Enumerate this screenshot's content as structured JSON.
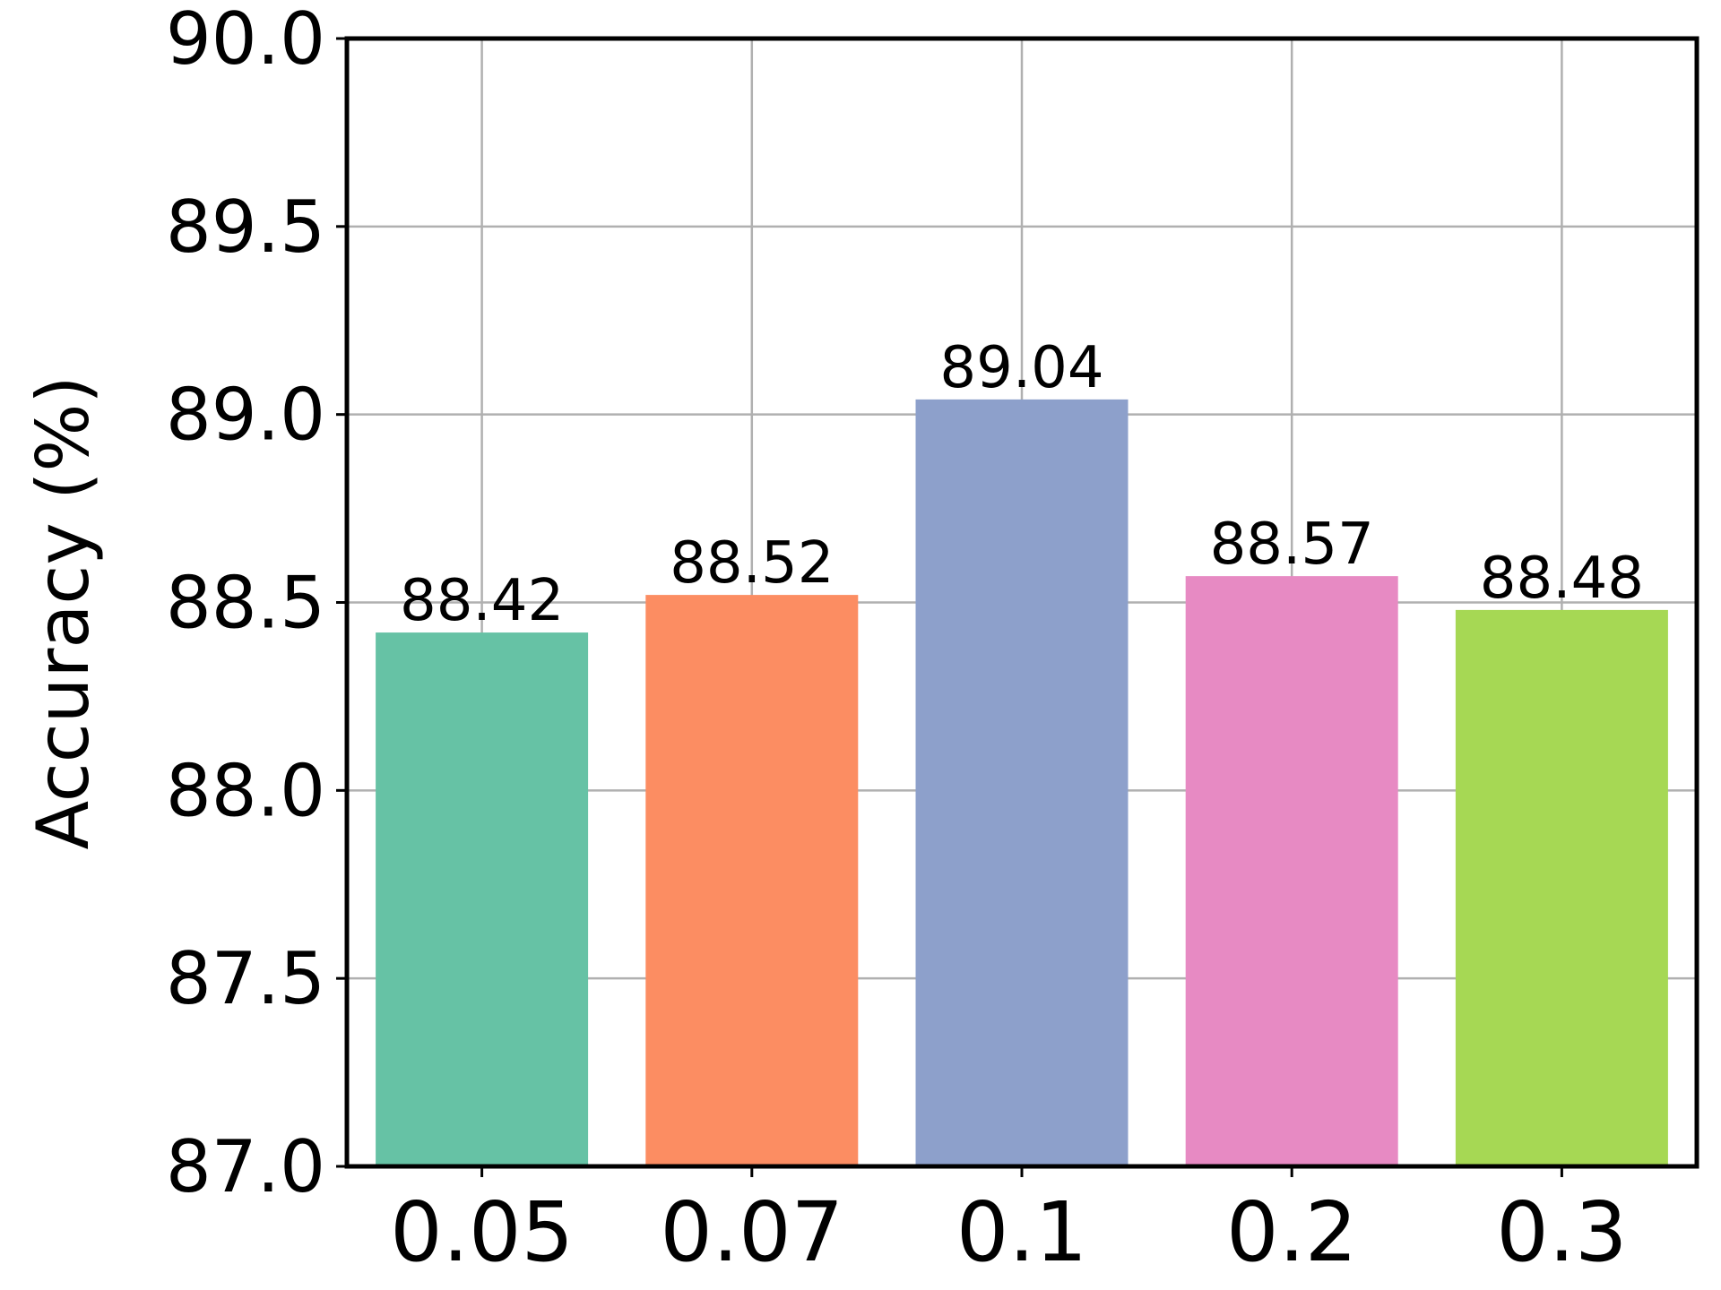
{
  "chart_data": {
    "type": "bar",
    "title": "",
    "xlabel": "",
    "ylabel": "Accuracy (%)",
    "categories": [
      "0.05",
      "0.07",
      "0.1",
      "0.2",
      "0.3"
    ],
    "values": [
      88.42,
      88.52,
      89.04,
      88.57,
      88.48
    ],
    "value_labels": [
      "88.42",
      "88.52",
      "89.04",
      "88.57",
      "88.48"
    ],
    "bar_colors": [
      "#66c2a5",
      "#fc8d62",
      "#8da0cb",
      "#e78ac3",
      "#a6d854"
    ],
    "ylim": [
      87.0,
      90.0
    ],
    "yticks": [
      87.0,
      87.5,
      88.0,
      88.5,
      89.0,
      89.5,
      90.0
    ],
    "ytick_labels": [
      "87.0",
      "87.5",
      "88.0",
      "88.5",
      "89.0",
      "89.5",
      "90.0"
    ],
    "grid": true,
    "grid_color": "#b0b0b0",
    "axis_color": "#000000",
    "legend": "none"
  }
}
